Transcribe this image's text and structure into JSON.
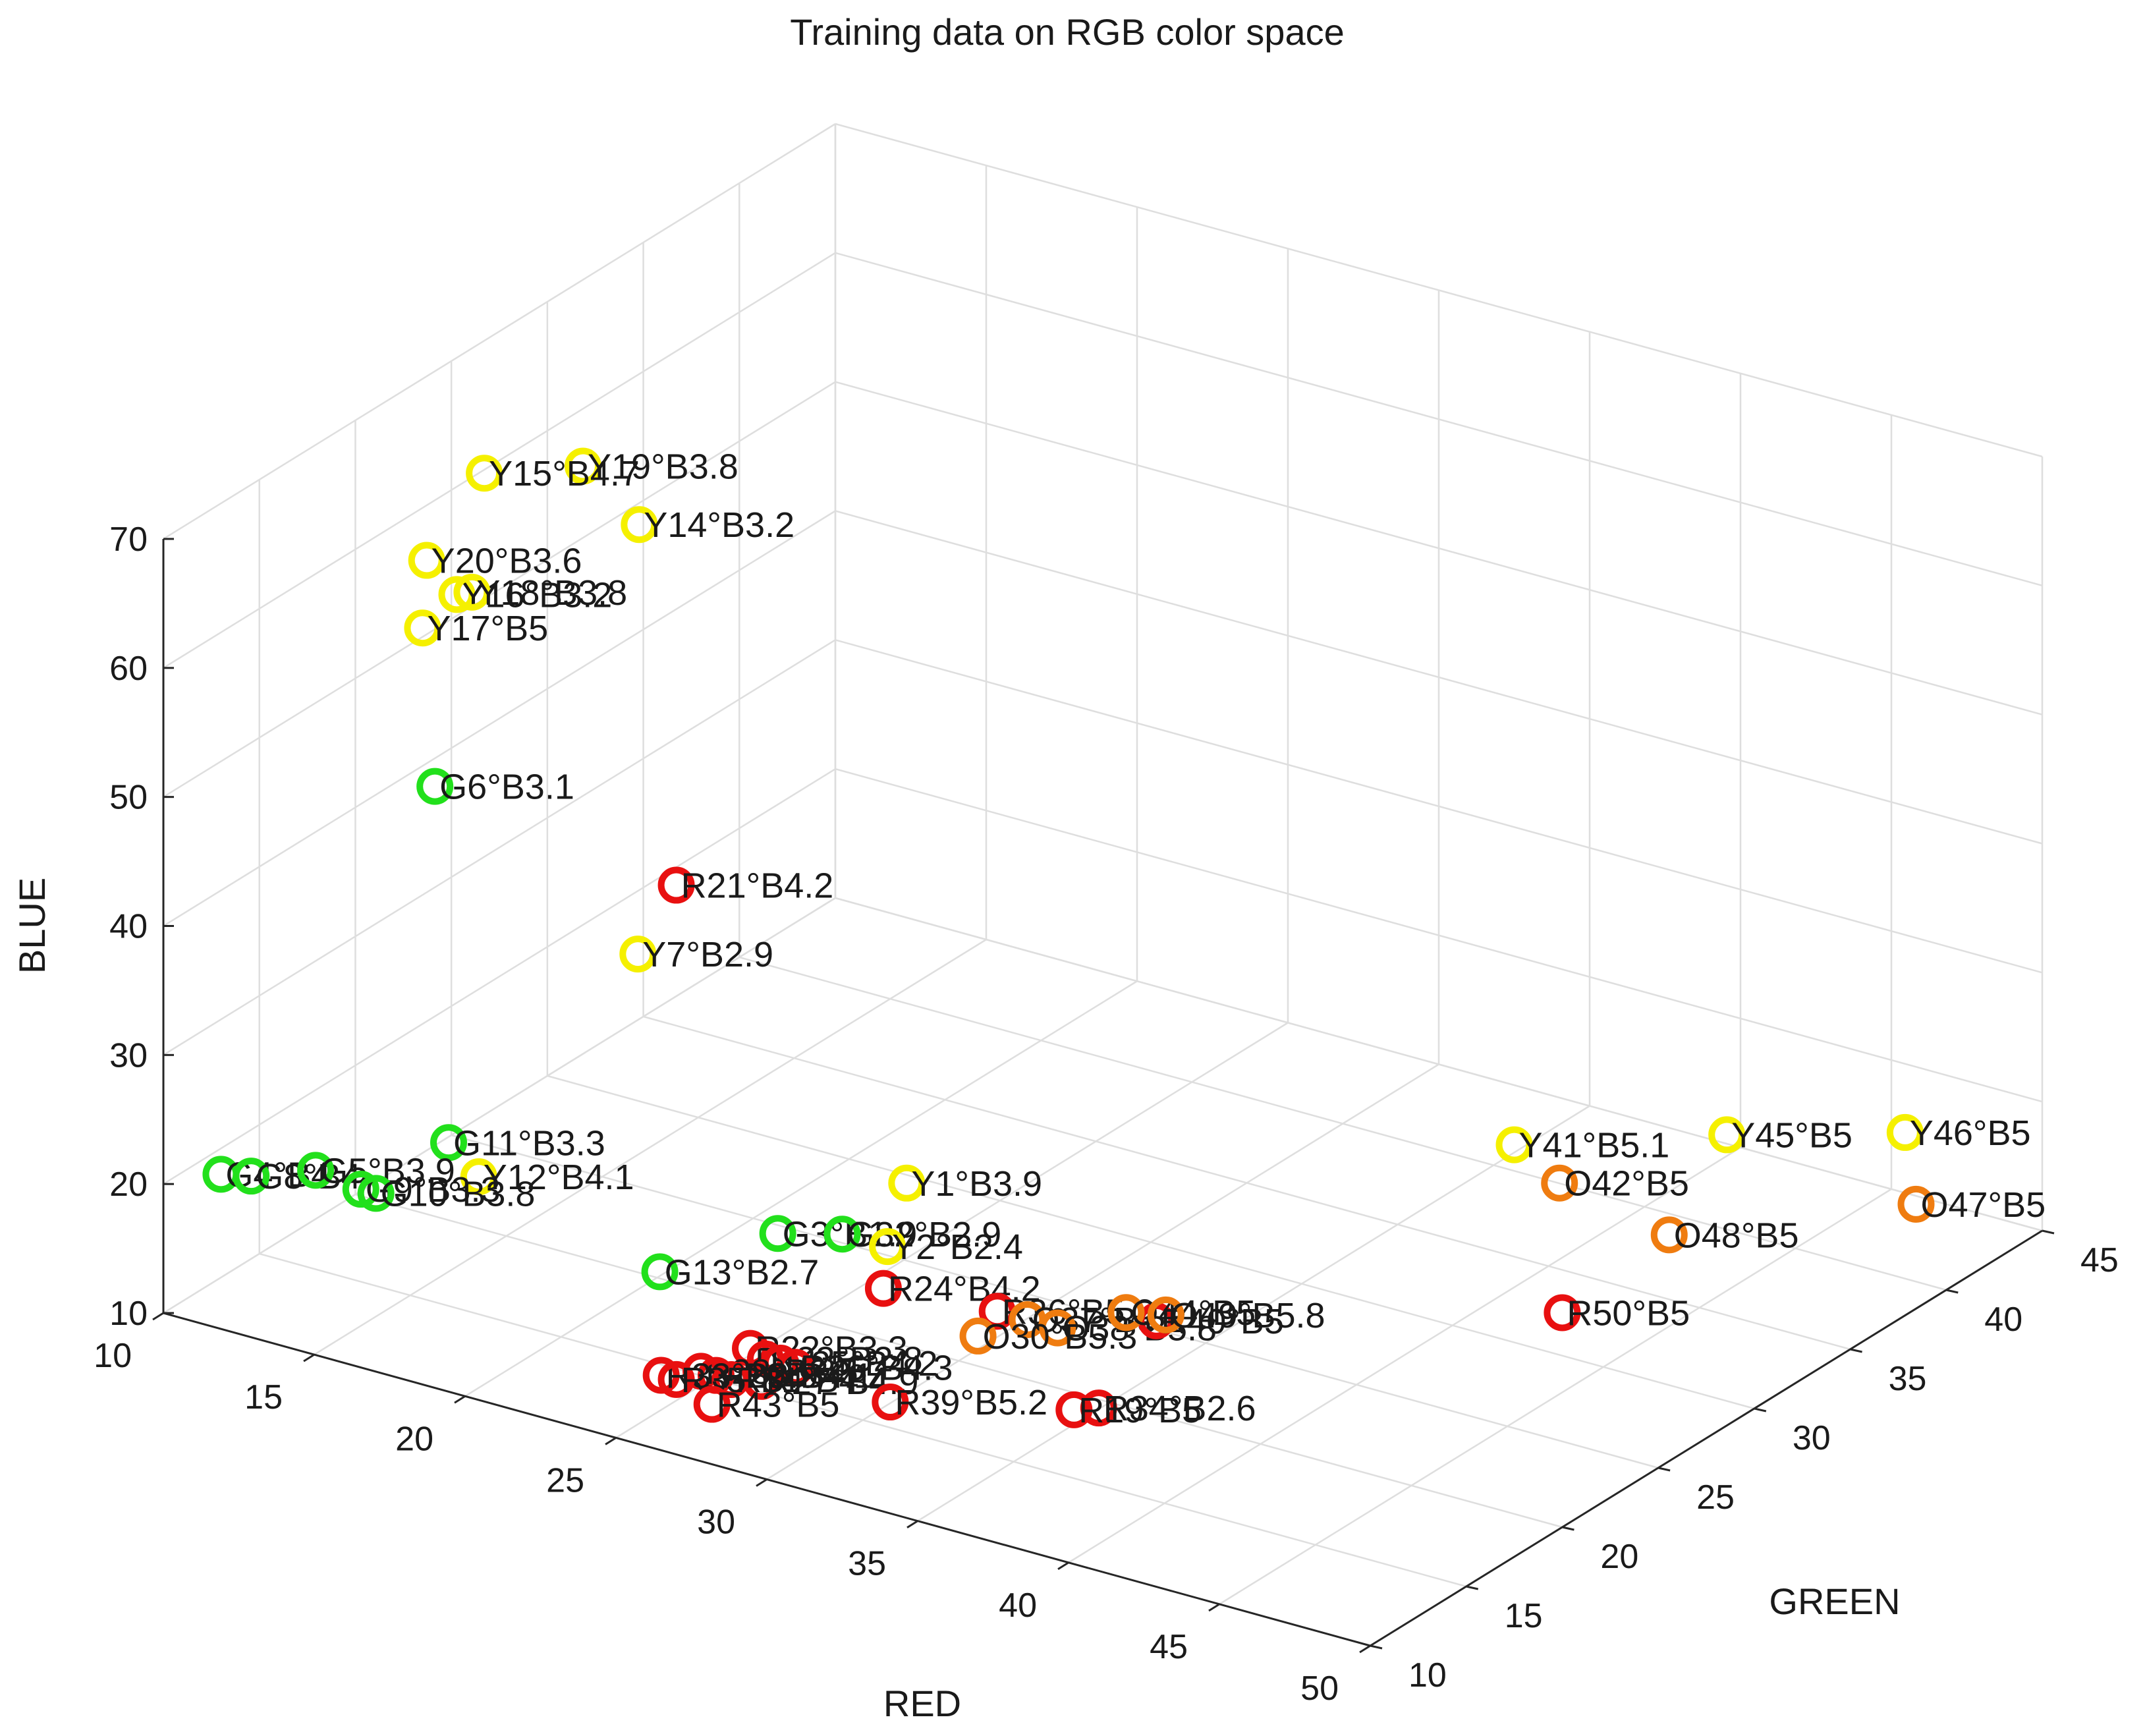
{
  "chart_data": {
    "type": "scatter",
    "title": "Training data on RGB color space",
    "xlabel": "RED",
    "ylabel": "GREEN",
    "zlabel": "BLUE",
    "xlim": [
      10,
      50
    ],
    "ylim": [
      10,
      45
    ],
    "zlim": [
      10,
      70
    ],
    "xticks": [
      "10",
      "15",
      "20",
      "25",
      "30",
      "35",
      "40",
      "45",
      "50"
    ],
    "yticks": [
      "10",
      "15",
      "20",
      "25",
      "30",
      "35",
      "40",
      "45"
    ],
    "zticks": [
      "10",
      "20",
      "30",
      "40",
      "50",
      "60",
      "70"
    ],
    "grid": true,
    "colors": {
      "Y": "#f5f000",
      "G": "#22e01c",
      "R": "#e81010",
      "O": "#ef7c10"
    },
    "series": [
      {
        "name": "Y19",
        "label": "Y19°B3.8",
        "class": "Y",
        "red": 15,
        "green": 24,
        "blue": 66
      },
      {
        "name": "Y15",
        "label": "Y15°B4.7",
        "class": "Y",
        "red": 13,
        "green": 22,
        "blue": 66
      },
      {
        "name": "Y14",
        "label": "Y14°B3.2",
        "class": "Y",
        "red": 17.5,
        "green": 23,
        "blue": 64
      },
      {
        "name": "Y20",
        "label": "Y20°B3.6",
        "class": "Y",
        "red": 13,
        "green": 19,
        "blue": 62
      },
      {
        "name": "Y16",
        "label": "Y16°B3.2",
        "class": "Y",
        "red": 14,
        "green": 19,
        "blue": 60
      },
      {
        "name": "Y18",
        "label": "Y18°B3.8",
        "class": "Y",
        "red": 14.5,
        "green": 19,
        "blue": 60.5
      },
      {
        "name": "Y17",
        "label": "Y17°B5",
        "class": "Y",
        "red": 13.5,
        "green": 18,
        "blue": 58
      },
      {
        "name": "G6",
        "label": "G6°B3.1",
        "class": "G",
        "red": 12,
        "green": 21,
        "blue": 42
      },
      {
        "name": "R21",
        "label": "R21°B4.2",
        "class": "R",
        "red": 20,
        "green": 21,
        "blue": 39.5
      },
      {
        "name": "Y7",
        "label": "Y7°B2.9",
        "class": "Y",
        "red": 20,
        "green": 19,
        "blue": 36
      },
      {
        "name": "Y41",
        "label": "Y41°B5.1",
        "class": "Y",
        "red": 39.5,
        "green": 34,
        "blue": 20
      },
      {
        "name": "Y45",
        "label": "Y45°B5",
        "class": "Y",
        "red": 44,
        "green": 38,
        "blue": 20
      },
      {
        "name": "Y46",
        "label": "Y46°B5",
        "class": "Y",
        "red": 48,
        "green": 41,
        "blue": 20
      },
      {
        "name": "O42",
        "label": "O42°B5",
        "class": "O",
        "red": 41,
        "green": 34,
        "blue": 18
      },
      {
        "name": "O47",
        "label": "O47°B5",
        "class": "O",
        "red": 49,
        "green": 40,
        "blue": 16
      },
      {
        "name": "O48",
        "label": "O48°B5",
        "class": "O",
        "red": 44,
        "green": 35,
        "blue": 15
      },
      {
        "name": "R50",
        "label": "R50°B5",
        "class": "R",
        "red": 43,
        "green": 31,
        "blue": 12
      },
      {
        "name": "G11",
        "label": "G11°B3.3",
        "class": "G",
        "red": 15,
        "green": 17,
        "blue": 20
      },
      {
        "name": "Y12",
        "label": "Y12°B4.1",
        "class": "Y",
        "red": 16,
        "green": 17,
        "blue": 18
      },
      {
        "name": "G13",
        "label": "G13°B2.7",
        "class": "G",
        "red": 22,
        "green": 17,
        "blue": 14.5
      },
      {
        "name": "G4",
        "label": "G4°B4",
        "class": "G",
        "red": 10,
        "green": 13,
        "blue": 18
      },
      {
        "name": "G8",
        "label": "G8°B4",
        "class": "G",
        "red": 11,
        "green": 13,
        "blue": 18.5
      },
      {
        "name": "G5",
        "label": "G5°B3.9",
        "class": "G",
        "red": 12.5,
        "green": 14,
        "blue": 19
      },
      {
        "name": "G9",
        "label": "G9°B3.3",
        "class": "G",
        "red": 14,
        "green": 14,
        "blue": 18.5
      },
      {
        "name": "G10",
        "label": "G10°B3.8",
        "class": "G",
        "red": 14.5,
        "green": 14,
        "blue": 18.5
      },
      {
        "name": "G3",
        "label": "G3°B1.9",
        "class": "G",
        "red": 24,
        "green": 20,
        "blue": 16
      },
      {
        "name": "G32",
        "label": "G32°B2.9",
        "class": "G",
        "red": 25.5,
        "green": 21,
        "blue": 16
      },
      {
        "name": "Y2",
        "label": "Y2°B2.4",
        "class": "Y",
        "red": 27,
        "green": 21,
        "blue": 16
      },
      {
        "name": "Y1",
        "label": "Y1°B3.9",
        "class": "Y",
        "red": 27,
        "green": 22,
        "blue": 20
      },
      {
        "name": "R24",
        "label": "R24°B4.2",
        "class": "R",
        "red": 27.5,
        "green": 20,
        "blue": 14
      },
      {
        "name": "R36",
        "label": "R36°B5.2",
        "class": "R",
        "red": 30,
        "green": 22,
        "blue": 12
      },
      {
        "name": "O37",
        "label": "O37°B5.2",
        "class": "O",
        "red": 31,
        "green": 22,
        "blue": 12
      },
      {
        "name": "O38",
        "label": "O38°B5.8",
        "class": "O",
        "red": 32,
        "green": 22,
        "blue": 12
      },
      {
        "name": "O30",
        "label": "O30°B5.3",
        "class": "O",
        "red": 30,
        "green": 21,
        "blue": 11
      },
      {
        "name": "R40",
        "label": "R40°B5",
        "class": "R",
        "red": 34,
        "green": 24,
        "blue": 12
      },
      {
        "name": "O44",
        "label": "O44°B5",
        "class": "O",
        "red": 33,
        "green": 24,
        "blue": 12
      },
      {
        "name": "O49",
        "label": "O49°B5.8",
        "class": "O",
        "red": 34,
        "green": 24.5,
        "blue": 12
      },
      {
        "name": "R22",
        "label": "R22°B3.3",
        "class": "R",
        "red": 25,
        "green": 17,
        "blue": 10.5
      },
      {
        "name": "R23",
        "label": "R23°B2.8",
        "class": "R",
        "red": 25.5,
        "green": 17,
        "blue": 10
      },
      {
        "name": "R25",
        "label": "R25°B4.2",
        "class": "R",
        "red": 26,
        "green": 17,
        "blue": 10
      },
      {
        "name": "R26",
        "label": "R26°B4.3",
        "class": "R",
        "red": 26.5,
        "green": 17,
        "blue": 10
      },
      {
        "name": "R27",
        "label": "R27°B4.9",
        "class": "R",
        "red": 26,
        "green": 16,
        "blue": 9.5
      },
      {
        "name": "R28",
        "label": "R28°B3.5",
        "class": "R",
        "red": 24,
        "green": 16,
        "blue": 9
      },
      {
        "name": "R29",
        "label": "R29°B4.1",
        "class": "R",
        "red": 24.5,
        "green": 16,
        "blue": 9
      },
      {
        "name": "R31",
        "label": "R31°B4.4",
        "class": "R",
        "red": 25,
        "green": 16,
        "blue": 9
      },
      {
        "name": "R33",
        "label": "R33°B3.9",
        "class": "R",
        "red": 23,
        "green": 15.5,
        "blue": 8.5
      },
      {
        "name": "R35",
        "label": "R35°B4",
        "class": "R",
        "red": 23.5,
        "green": 15.5,
        "blue": 8.5
      },
      {
        "name": "R43",
        "label": "R43°B5",
        "class": "R",
        "red": 25,
        "green": 15,
        "blue": 8
      },
      {
        "name": "R39",
        "label": "R39°B5.2",
        "class": "R",
        "red": 29,
        "green": 18,
        "blue": 8
      },
      {
        "name": "R34",
        "label": "R34°B2.6",
        "class": "R",
        "red": 34,
        "green": 21,
        "blue": 8
      },
      {
        "name": "R19",
        "label": "R19°B5",
        "class": "R",
        "red": 33.5,
        "green": 20.5,
        "blue": 8
      }
    ]
  }
}
